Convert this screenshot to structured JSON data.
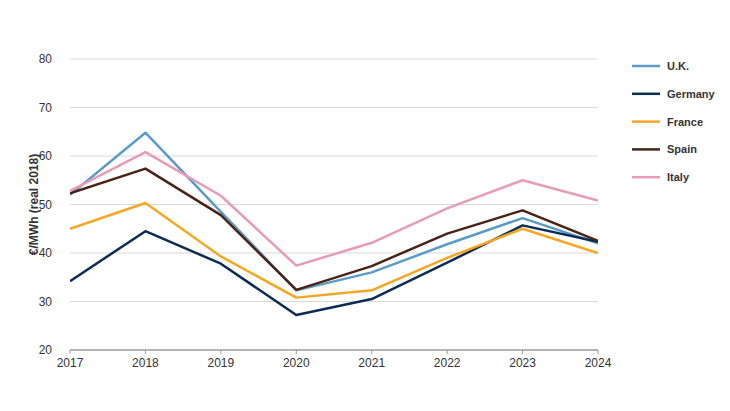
{
  "chart_data": {
    "type": "line",
    "y_label": "€/MWh (real 2018)",
    "x": [
      2017,
      2018,
      2019,
      2020,
      2021,
      2022,
      2023,
      2024
    ],
    "xlim": [
      2017,
      2024
    ],
    "xticks": [
      2017,
      2018,
      2019,
      2020,
      2021,
      2022,
      2023,
      2024
    ],
    "ylim": [
      20,
      80
    ],
    "yticks": [
      20,
      30,
      40,
      50,
      60,
      70,
      80
    ],
    "grid": true,
    "legend": "right",
    "series": [
      {
        "name": "U.K.",
        "color": "#5b9bc9",
        "values": [
          52,
          64.8,
          48.5,
          32.3,
          36,
          41.8,
          47.2,
          42
        ]
      },
      {
        "name": "Germany",
        "color": "#0c2c54",
        "values": [
          34.2,
          44.5,
          37.8,
          27.2,
          30.5,
          38,
          45.7,
          42.3
        ]
      },
      {
        "name": "France",
        "color": "#f5a623",
        "values": [
          45,
          50.3,
          39.3,
          30.8,
          32.3,
          39,
          45,
          40
        ]
      },
      {
        "name": "Spain",
        "color": "#4a2317",
        "values": [
          52.3,
          57.4,
          47.8,
          32.4,
          37.3,
          44,
          48.8,
          42.5
        ]
      },
      {
        "name": "Italy",
        "color": "#e89bb5",
        "values": [
          52.8,
          60.8,
          51.8,
          37.4,
          42.1,
          49.2,
          55,
          50.8
        ]
      }
    ]
  }
}
